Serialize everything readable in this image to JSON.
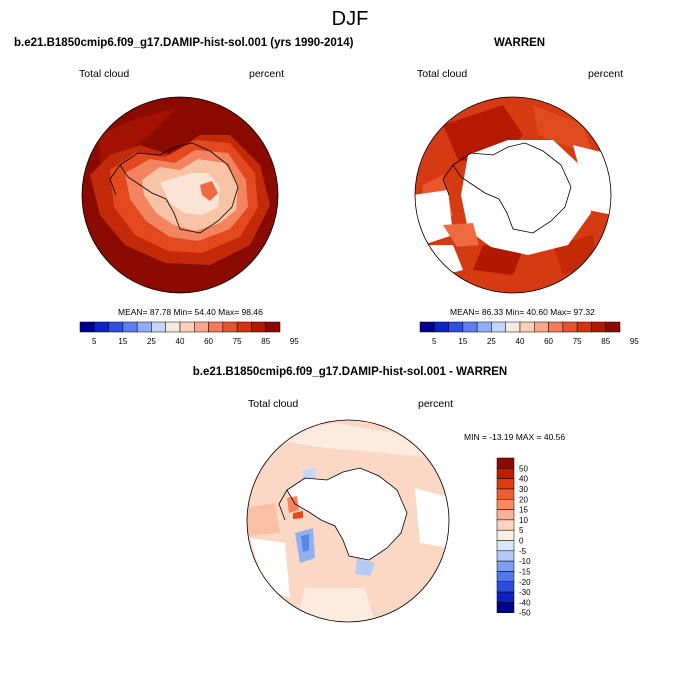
{
  "figure_title": "DJF",
  "colors": {
    "ocean_dark": "#8b0a00",
    "coast": "#000000",
    "missing": "#ffffff"
  },
  "panels": [
    {
      "title": "b.e21.B1850cmip6.f09_g17.DAMIP-hist-sol.001 (yrs 1990-2014)",
      "left_label": "Total cloud",
      "right_label": "percent",
      "stats": "MEAN=  87.78   Min=  54.40   Max=  98.46",
      "colorbar": {
        "ticks": [
          "5",
          "15",
          "25",
          "40",
          "60",
          "75",
          "85",
          "95"
        ],
        "colors": [
          "#00008f",
          "#0b24c9",
          "#2f4fe0",
          "#5c7fee",
          "#90aef5",
          "#c5d6fb",
          "#f7eadf",
          "#fbd0b8",
          "#f7a78a",
          "#f07c5c",
          "#e65330",
          "#d9300f",
          "#b51600",
          "#8b0a00"
        ]
      }
    },
    {
      "title": "WARREN",
      "left_label": "Total cloud",
      "right_label": "percent",
      "stats": "MEAN=  86.33   Min=  40.60   Max=  97.32",
      "colorbar": {
        "ticks": [
          "5",
          "15",
          "25",
          "40",
          "60",
          "75",
          "85",
          "95"
        ],
        "colors": [
          "#00008f",
          "#0b24c9",
          "#2f4fe0",
          "#5c7fee",
          "#90aef5",
          "#c5d6fb",
          "#f7eadf",
          "#fbd0b8",
          "#f7a78a",
          "#f07c5c",
          "#e65330",
          "#d9300f",
          "#b51600",
          "#8b0a00"
        ]
      }
    },
    {
      "title": "b.e21.B1850cmip6.f09_g17.DAMIP-hist-sol.001 - WARREN",
      "left_label": "Total cloud",
      "right_label": "percent",
      "stats": "MIN = -13.19 MAX =  40.56",
      "colorbar": {
        "ticks": [
          "50",
          "40",
          "30",
          "20",
          "15",
          "10",
          "5",
          "0",
          "-5",
          "-10",
          "-15",
          "-20",
          "-30",
          "-40",
          "-50"
        ],
        "colors": [
          "#8b0a00",
          "#c21a00",
          "#e03a12",
          "#ef5c35",
          "#f58a64",
          "#f9b195",
          "#fcd5c0",
          "#fdeee4",
          "#dbe7f8",
          "#b1c9f4",
          "#7d9ff0",
          "#5179e8",
          "#2a4ddd",
          "#0b22c0",
          "#00008f"
        ]
      }
    }
  ]
}
